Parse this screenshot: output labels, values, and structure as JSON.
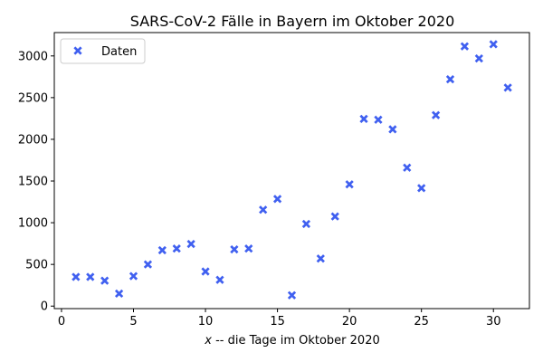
{
  "chart_data": {
    "type": "scatter",
    "title": "SARS-CoV-2 Fälle in Bayern im Oktober 2020",
    "xlabel_var": "x",
    "xlabel_rest": " -- die Tage im Oktober 2020",
    "ylabel": "",
    "xlim": [
      -0.5,
      32.5
    ],
    "ylim": [
      -30,
      3280
    ],
    "xticks": [
      0,
      5,
      10,
      15,
      20,
      25,
      30
    ],
    "yticks": [
      0,
      500,
      1000,
      1500,
      2000,
      2500,
      3000
    ],
    "grid": false,
    "legend_position": "upper left",
    "series": [
      {
        "name": "Daten",
        "color": "#4060f0",
        "marker": "X",
        "x": [
          1,
          2,
          3,
          4,
          5,
          6,
          7,
          8,
          9,
          10,
          11,
          12,
          13,
          14,
          15,
          16,
          17,
          18,
          19,
          20,
          21,
          22,
          23,
          24,
          25,
          26,
          27,
          28,
          29,
          30,
          31
        ],
        "y": [
          350,
          350,
          305,
          150,
          360,
          500,
          670,
          690,
          745,
          415,
          315,
          680,
          690,
          1155,
          1285,
          130,
          985,
          570,
          1075,
          1460,
          2245,
          2235,
          2120,
          1660,
          1415,
          2290,
          2720,
          3115,
          2970,
          3140,
          2620
        ]
      }
    ]
  }
}
